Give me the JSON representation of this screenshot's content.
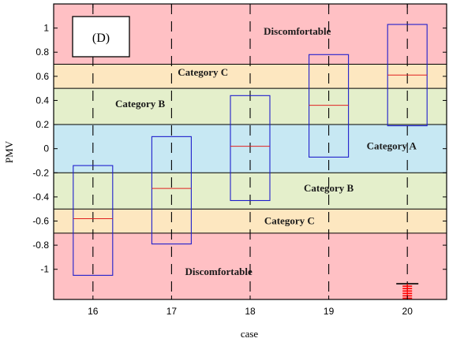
{
  "chart_data": {
    "type": "box",
    "panel_label": "(D)",
    "xlabel": "case",
    "ylabel": "PMV",
    "categories": [
      "16",
      "17",
      "18",
      "19",
      "20"
    ],
    "ylim": [
      -1.25,
      1.2
    ],
    "yticks": [
      -1,
      -0.8,
      -0.6,
      -0.4,
      -0.2,
      0,
      0.2,
      0.4,
      0.6,
      0.8,
      1
    ],
    "ytick_labels": [
      "-1",
      "-0.8",
      "-0.6",
      "-0.4",
      "-0.2",
      "0",
      "0.2",
      "0.4",
      "0.6",
      "0.8",
      "1"
    ],
    "zones": [
      {
        "name": "Discomfortable",
        "from": 0.7,
        "to": 1.2,
        "color": "#ffc0c4"
      },
      {
        "name": "Category C",
        "from": 0.5,
        "to": 0.7,
        "color": "#fde7c0"
      },
      {
        "name": "Category B",
        "from": 0.2,
        "to": 0.5,
        "color": "#e4efcb"
      },
      {
        "name": "Category A",
        "from": -0.2,
        "to": 0.2,
        "color": "#c7e8f3"
      },
      {
        "name": "Category B",
        "from": -0.5,
        "to": -0.2,
        "color": "#e4efcb"
      },
      {
        "name": "Category C",
        "from": -0.7,
        "to": -0.5,
        "color": "#fde7c0"
      },
      {
        "name": "Discomfortable",
        "from": -1.25,
        "to": -0.7,
        "color": "#ffc0c4"
      }
    ],
    "zone_labels": [
      {
        "text": "Discomfortable",
        "x": 18.6,
        "y": 0.97
      },
      {
        "text": "Category C",
        "x": 17.4,
        "y": 0.63
      },
      {
        "text": "Category B",
        "x": 16.6,
        "y": 0.37
      },
      {
        "text": "Category A",
        "x": 19.8,
        "y": 0.02
      },
      {
        "text": "Category B",
        "x": 19.0,
        "y": -0.33
      },
      {
        "text": "Category C",
        "x": 18.5,
        "y": -0.6
      },
      {
        "text": "Discomfortable",
        "x": 17.6,
        "y": -1.02
      }
    ],
    "boxes": [
      {
        "category": "16",
        "q1": -1.05,
        "median": -0.58,
        "q3": -0.14,
        "whisker_low": -1.05,
        "whisker_high": -0.14
      },
      {
        "category": "17",
        "q1": -0.79,
        "median": -0.33,
        "q3": 0.1,
        "whisker_low": -0.79,
        "whisker_high": 0.1
      },
      {
        "category": "18",
        "q1": -0.43,
        "median": 0.02,
        "q3": 0.44,
        "whisker_low": -0.43,
        "whisker_high": 0.44
      },
      {
        "category": "19",
        "q1": -0.07,
        "median": 0.36,
        "q3": 0.78,
        "whisker_low": -0.07,
        "whisker_high": 0.78
      },
      {
        "category": "20",
        "q1": 0.19,
        "median": 0.61,
        "q3": 1.03,
        "whisker_low": 0.19,
        "whisker_high": 1.03
      }
    ],
    "outliers": [
      {
        "category": "20",
        "values": [
          -1.12,
          -1.14,
          -1.16,
          -1.18,
          -1.2,
          -1.22,
          -1.24
        ]
      }
    ],
    "colors": {
      "box": "#1f1fcc",
      "median": "#e02020",
      "outlier": "#ff0000",
      "whisker": "#000000",
      "zone_line": "#000000"
    }
  }
}
